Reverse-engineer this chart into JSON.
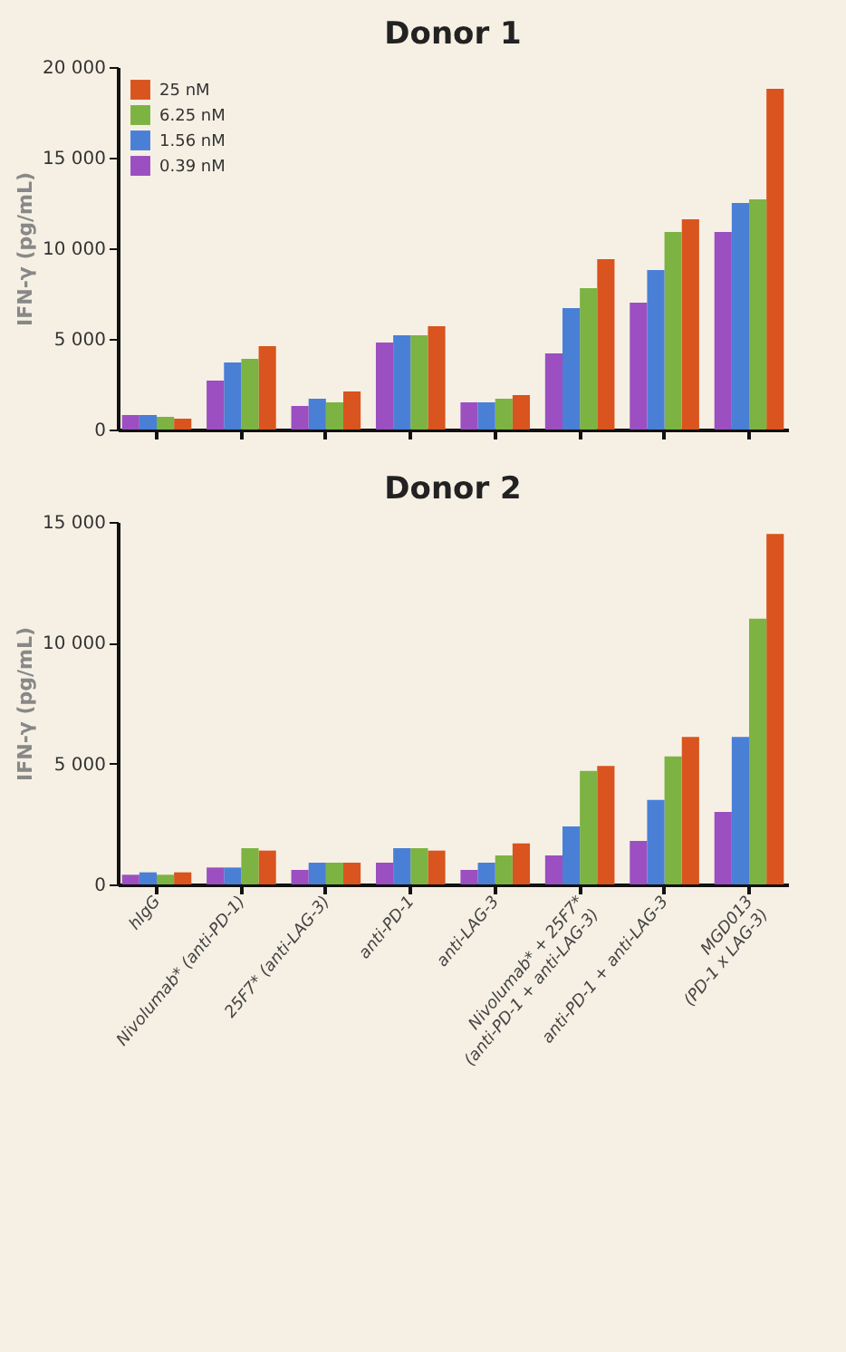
{
  "chart_data": [
    {
      "type": "bar",
      "title": "Donor 1",
      "ylabel": "IFN-γ (pg/mL)",
      "tick_labels": "y",
      "legend": "top left",
      "categories": [
        "hIgG",
        "Nivolumab* (anti-PD-1)",
        "25F7* (anti-LAG-3)",
        "anti-PD-1",
        "anti-LAG-3",
        "Nivolumab* + 25F7*\n(anti-PD-1 + anti-LAG-3)",
        "anti-PD-1 + anti-LAG-3",
        "MGD013\n(PD-1 x LAG-3)"
      ],
      "ylim": [
        0,
        20000
      ],
      "yticks": [
        0,
        {
          "value": 5000,
          "label": "5 000"
        },
        {
          "value": 10000,
          "label": "10 000"
        },
        {
          "value": 15000,
          "label": "15 000"
        },
        {
          "value": 20000,
          "label": "20 000"
        }
      ],
      "series": [
        {
          "name": "25 nM",
          "color": "#d9541e",
          "values": [
            600,
            4600,
            2100,
            5700,
            1900,
            9400,
            11600,
            18800
          ]
        },
        {
          "name": "6.25 nM",
          "color": "#7cb342",
          "values": [
            700,
            3900,
            1500,
            5200,
            1700,
            7800,
            10900,
            12700
          ]
        },
        {
          "name": "1.56 nM",
          "color": "#4a7fd6",
          "values": [
            800,
            3700,
            1700,
            5200,
            1500,
            6700,
            8800,
            12500
          ]
        },
        {
          "name": "0.39 nM",
          "color": "#9b4fc0",
          "values": [
            800,
            2700,
            1300,
            4800,
            1500,
            4200,
            7000,
            10900
          ]
        }
      ]
    },
    {
      "type": "bar",
      "title": "Donor 2",
      "ylabel": "IFN-γ (pg/mL)",
      "legend": "top left",
      "categories": [
        "hIgG",
        "Nivolumab* (anti-PD-1)",
        "25F7* (anti-LAG-3)",
        "anti-PD-1",
        "anti-LAG-3",
        "Nivolumab* + 25F7*\n(anti-PD-1 + anti-LAG-3)",
        "anti-PD-1 + anti-LAG-3",
        "MGD013\n(PD-1 x LAG-3)"
      ],
      "ylim": [
        0,
        15000
      ],
      "yticks": [
        0,
        {
          "value": 5000,
          "label": "5 000"
        },
        {
          "value": 10000,
          "label": "10 000"
        },
        {
          "value": 15000,
          "label": "15 000"
        }
      ],
      "series": [
        {
          "name": "25 nM",
          "color": "#d9541e",
          "values": [
            500,
            1400,
            900,
            1400,
            1700,
            4900,
            6100,
            14500
          ]
        },
        {
          "name": "6.25 nM",
          "color": "#7cb342",
          "values": [
            400,
            1500,
            900,
            1500,
            1200,
            4700,
            5300,
            11000
          ]
        },
        {
          "name": "1.56 nM",
          "color": "#4a7fd6",
          "values": [
            500,
            700,
            900,
            1500,
            900,
            2400,
            3500,
            6100
          ]
        },
        {
          "name": "0.39 nM",
          "color": "#9b4fc0",
          "values": [
            400,
            700,
            600,
            900,
            600,
            1200,
            1800,
            3000
          ]
        }
      ]
    }
  ]
}
